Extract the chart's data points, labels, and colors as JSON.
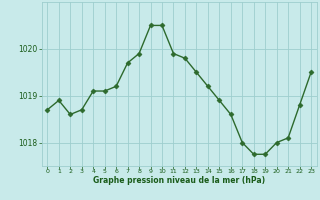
{
  "x": [
    0,
    1,
    2,
    3,
    4,
    5,
    6,
    7,
    8,
    9,
    10,
    11,
    12,
    13,
    14,
    15,
    16,
    17,
    18,
    19,
    20,
    21,
    22,
    23
  ],
  "y": [
    1018.7,
    1018.9,
    1018.6,
    1018.7,
    1019.1,
    1019.1,
    1019.2,
    1019.7,
    1019.9,
    1020.5,
    1020.5,
    1019.9,
    1019.8,
    1019.5,
    1019.2,
    1018.9,
    1018.6,
    1018.0,
    1017.75,
    1017.75,
    1018.0,
    1018.1,
    1018.8,
    1019.5
  ],
  "line_color": "#2d6a2d",
  "marker": "D",
  "marker_size": 2.5,
  "bg_color": "#c8eaea",
  "grid_color": "#9ecece",
  "xlabel": "Graphe pression niveau de la mer (hPa)",
  "xlabel_color": "#1a5c1a",
  "tick_color": "#1a5c1a",
  "ylim": [
    1017.5,
    1021.0
  ],
  "yticks": [
    1018,
    1019,
    1020
  ],
  "xlim": [
    -0.5,
    23.5
  ],
  "xticks": [
    0,
    1,
    2,
    3,
    4,
    5,
    6,
    7,
    8,
    9,
    10,
    11,
    12,
    13,
    14,
    15,
    16,
    17,
    18,
    19,
    20,
    21,
    22,
    23
  ]
}
